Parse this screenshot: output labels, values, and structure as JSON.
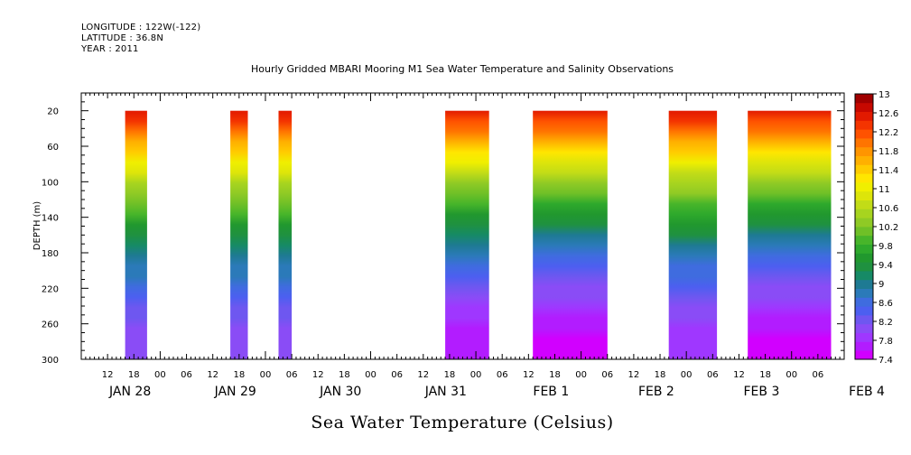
{
  "header": {
    "longitude": "LONGITUDE : 122W(-122)",
    "latitude": "LATITUDE : 36.8N",
    "year": "YEAR : 2011"
  },
  "chart_data": {
    "type": "heatmap",
    "title": "Hourly Gridded MBARI Mooring M1 Sea Water Temperature and Salinity Observations",
    "ylabel": "DEPTH (m)",
    "bottom_title": "Sea Water Temperature (Celsius)",
    "y_ticks": [
      20,
      60,
      100,
      140,
      180,
      220,
      260,
      300
    ],
    "ylim": [
      0,
      300
    ],
    "y_inverted": true,
    "x_hour_labels": [
      "12",
      "18",
      "00",
      "06",
      "12",
      "18",
      "00",
      "06",
      "12",
      "18",
      "00",
      "06",
      "12",
      "18",
      "00",
      "06",
      "12",
      "18",
      "00",
      "06",
      "12",
      "18",
      "00",
      "06",
      "12",
      "18",
      "00",
      "06"
    ],
    "x_date_labels": [
      "JAN 28",
      "JAN 29",
      "JAN 30",
      "JAN 31",
      "FEB  1",
      "FEB  2",
      "FEB  3",
      "FEB  4"
    ],
    "colorbar": {
      "labels": [
        "13",
        "12.6",
        "12.2",
        "11.8",
        "11.4",
        "11",
        "10.6",
        "10.2",
        "9.8",
        "9.4",
        "9",
        "8.6",
        "8.2",
        "7.8",
        "7.4"
      ],
      "min": 7.4,
      "max": 13,
      "step": 0.2,
      "colors": [
        "#d100ff",
        "#b21cff",
        "#9f37ff",
        "#8a4cf6",
        "#6e57f0",
        "#4c5ff0",
        "#3f6cdf",
        "#2b7ab9",
        "#1e7a93",
        "#168a66",
        "#1f9140",
        "#21982e",
        "#2ea92c",
        "#47b52a",
        "#6fc027",
        "#8fca25",
        "#a7d41f",
        "#c2dc17",
        "#dde50a",
        "#f0ef00",
        "#ffe600",
        "#ffcc00",
        "#ffb000",
        "#ff9500",
        "#ff7400",
        "#ff5200",
        "#f43400",
        "#e21a00",
        "#c70800",
        "#a00000"
      ]
    },
    "x_axis_start": "2011-01-28T06:00",
    "x_axis_end": "2011-02-04T12:00",
    "data_segments": [
      {
        "start": "2011-01-28T16:00",
        "end": "2011-01-28T21:00",
        "surface_temp": 12.6,
        "bottom_temp": 8.0
      },
      {
        "start": "2011-01-29T16:00",
        "end": "2011-01-29T20:00",
        "surface_temp": 12.6,
        "bottom_temp": 8.0
      },
      {
        "start": "2011-01-30T03:00",
        "end": "2011-01-30T06:00",
        "surface_temp": 12.6,
        "bottom_temp": 8.0
      },
      {
        "start": "2011-01-31T17:00",
        "end": "2011-02-01T03:00",
        "surface_temp": 12.6,
        "bottom_temp": 7.6
      },
      {
        "start": "2011-02-01T13:00",
        "end": "2011-02-02T06:00",
        "surface_temp": 12.6,
        "bottom_temp": 7.5
      },
      {
        "start": "2011-02-02T20:00",
        "end": "2011-02-03T07:00",
        "surface_temp": 12.6,
        "bottom_temp": 7.8
      },
      {
        "start": "2011-02-03T14:00",
        "end": "2011-02-04T09:00",
        "surface_temp": 12.6,
        "bottom_temp": 7.5
      }
    ]
  }
}
